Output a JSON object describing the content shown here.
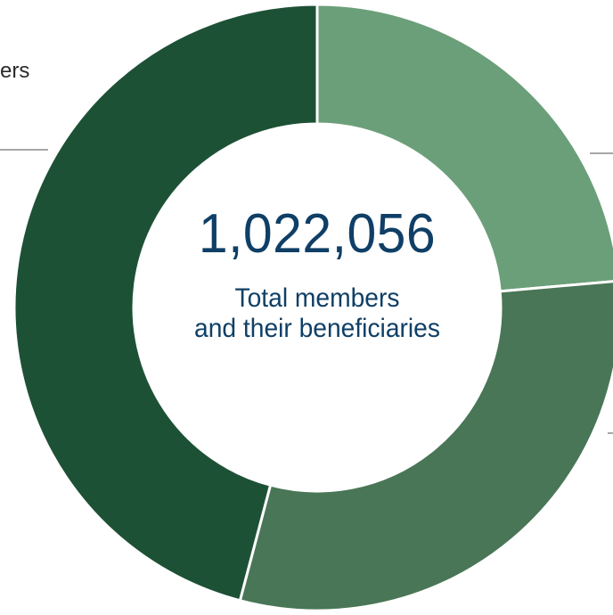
{
  "chart_data": {
    "type": "pie",
    "style": "donut",
    "slices": [
      {
        "label": "",
        "value": 23.6,
        "color": "#6b9f79"
      },
      {
        "label": "",
        "value": 30.5,
        "color": "#497656"
      },
      {
        "label": "",
        "value": 45.9,
        "color": "#1d5136"
      }
    ],
    "center_value": "1,022,056",
    "center_caption_lines": [
      "Total members",
      "and their beneficiaries"
    ],
    "partial_labels": [
      {
        "text": "ers"
      }
    ]
  },
  "colors": {
    "center_text": "#0f3f66",
    "leader_line": "#a7a7a7",
    "separator": "#ffffff"
  }
}
